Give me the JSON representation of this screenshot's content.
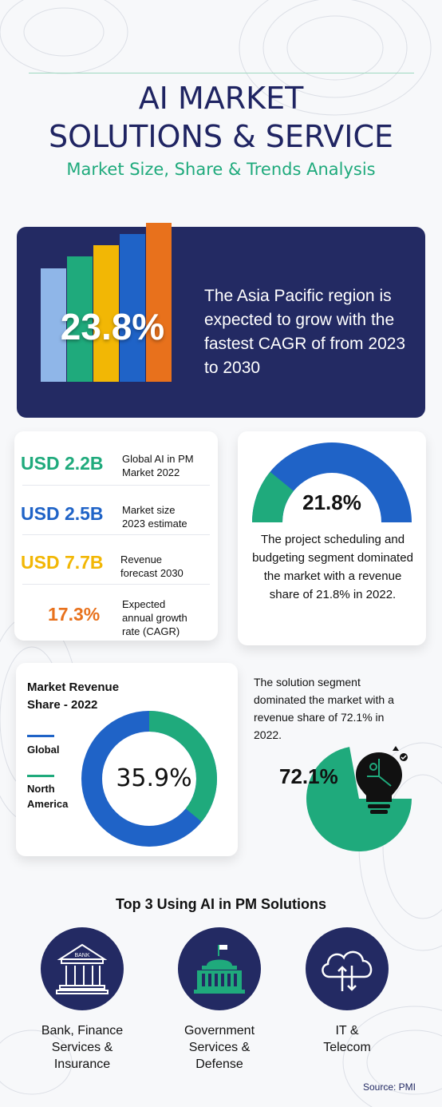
{
  "header": {
    "title_line1": "AI MARKET",
    "title_line2": "SOLUTIONS & SERVICE",
    "subtitle": "Market Size, Share & Trends Analysis"
  },
  "banner": {
    "percent": "23.8%",
    "text": "The Asia Pacific region is expected to grow with the fastest CAGR of from 2023 to 2030",
    "bar_colors": [
      "#8fb6e8",
      "#1faa7c",
      "#f2b705",
      "#1f63c7",
      "#e8711c"
    ]
  },
  "stats": [
    {
      "value": "USD 2.2B",
      "label_l1": "Global AI in PM",
      "label_l2": "Market 2022",
      "label_l3": "",
      "color": "#1faa7c"
    },
    {
      "value": "USD 2.5B",
      "label_l1": "Market size",
      "label_l2": "2023 estimate",
      "label_l3": "",
      "color": "#1f63c7"
    },
    {
      "value": "USD 7.7B",
      "label_l1": "Revenue",
      "label_l2": "forecast 2030",
      "label_l3": "",
      "color": "#f2b705"
    },
    {
      "value": "17.3%",
      "label_l1": "Expected",
      "label_l2": "annual growth",
      "label_l3": "rate (CAGR)",
      "color": "#e8711c"
    }
  ],
  "gauge": {
    "percent": "21.8%",
    "share": 0.218,
    "text": "The project scheduling and budgeting segment dominated the market with a revenue share of 21.8% in 2022."
  },
  "donut": {
    "title_l1": "Market Revenue",
    "title_l2": "Share - 2022",
    "percent": "35.9%",
    "share": 0.359,
    "legend": [
      {
        "label": "Global",
        "color": "#1f63c7"
      },
      {
        "label": "North America",
        "color": "#1faa7c"
      }
    ]
  },
  "solution": {
    "text": "The solution segment dominated the market with a revenue share of 72.1% in 2022.",
    "percent": "72.1%",
    "share": 0.721
  },
  "top3": {
    "title": "Top 3 Using AI in PM Solutions",
    "items": [
      {
        "icon": "bank-icon",
        "icon_text": "BANK",
        "label_l1": "Bank, Finance",
        "label_l2": "Services &",
        "label_l3": "Insurance"
      },
      {
        "icon": "government-building-icon",
        "label_l1": "Government",
        "label_l2": "Services &",
        "label_l3": "Defense"
      },
      {
        "icon": "cloud-transfer-icon",
        "label_l1": "IT &",
        "label_l2": "Telecom",
        "label_l3": ""
      }
    ]
  },
  "source": "Source: PMI",
  "colors": {
    "navy": "#232a63",
    "green": "#1faa7c",
    "blue": "#1f63c7",
    "yellow": "#f2b705",
    "orange": "#e8711c"
  }
}
